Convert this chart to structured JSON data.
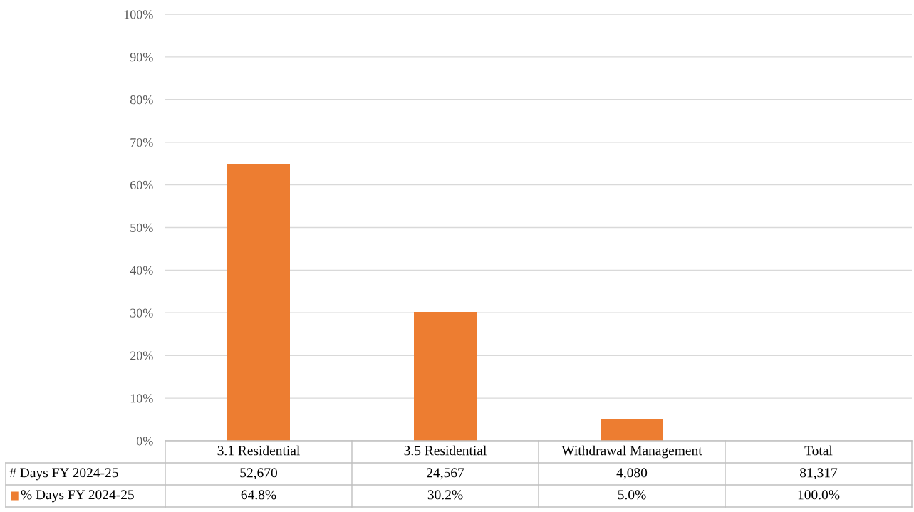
{
  "chart_data": {
    "type": "bar",
    "categories": [
      "3.1 Residential",
      "3.5 Residential",
      "Withdrawal Management",
      "Total"
    ],
    "series": [
      {
        "name": "# Days FY 2024-25",
        "values": [
          null,
          null,
          null,
          null
        ],
        "value_labels": [
          "52,670",
          "24,567",
          "4,080",
          "81,317"
        ]
      },
      {
        "name": "% Days FY 2024-25",
        "color": "#ed7d31",
        "values": [
          64.8,
          30.2,
          5.0,
          null
        ],
        "value_labels": [
          "64.8%",
          "30.2%",
          "5.0%",
          "100.0%"
        ]
      }
    ],
    "ylim": [
      0,
      100
    ],
    "yticks": [
      {
        "value": 0,
        "label": "0%"
      },
      {
        "value": 10,
        "label": "10%"
      },
      {
        "value": 20,
        "label": "20%"
      },
      {
        "value": 30,
        "label": "30%"
      },
      {
        "value": 40,
        "label": "40%"
      },
      {
        "value": 50,
        "label": "50%"
      },
      {
        "value": 60,
        "label": "60%"
      },
      {
        "value": 70,
        "label": "70%"
      },
      {
        "value": 80,
        "label": "80%"
      },
      {
        "value": 90,
        "label": "90%"
      },
      {
        "value": 100,
        "label": "100%"
      }
    ],
    "grid": "y",
    "legend": "bottom"
  }
}
